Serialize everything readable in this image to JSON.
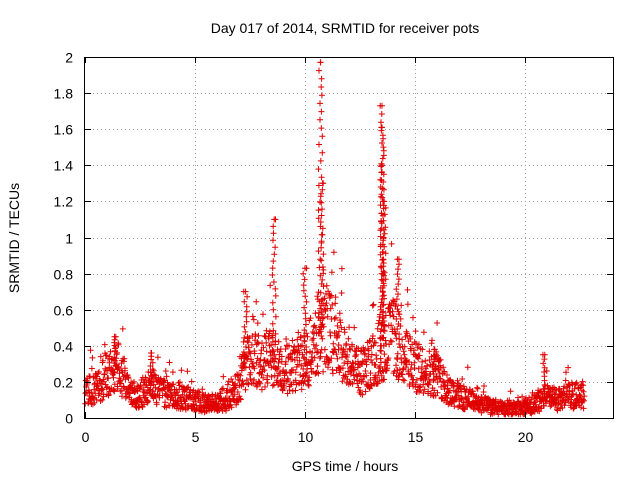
{
  "chart_data": {
    "type": "scatter",
    "title": "Day 017 of 2014, SRMTID for receiver pots",
    "xlabel": "GPS time / hours",
    "ylabel": "SRMTID / TECUs",
    "xlim": [
      0,
      24
    ],
    "ylim": [
      0,
      2
    ],
    "xticks": [
      0,
      5,
      10,
      15,
      20
    ],
    "yticks": [
      0,
      0.2,
      0.4,
      0.6,
      0.8,
      1,
      1.2,
      1.4,
      1.6,
      1.8,
      2
    ],
    "xtick_labels": [
      "0",
      "5",
      "10",
      "15",
      "20"
    ],
    "ytick_labels": [
      "0",
      "0.2",
      "0.4",
      "0.6",
      "0.8",
      "1",
      "1.2",
      "1.4",
      "1.6",
      "1.8",
      "2"
    ],
    "grid": true,
    "marker": "+",
    "color": "#e00000",
    "baseline_profile": {
      "description": "approximate background SRMTID level vs time (hours, TECU)",
      "x": [
        0,
        0.5,
        1.0,
        1.5,
        2.0,
        2.5,
        3.0,
        3.5,
        4.0,
        4.5,
        5.0,
        5.5,
        6.0,
        6.5,
        7.0,
        7.5,
        8.0,
        8.5,
        9.0,
        9.5,
        10.0,
        10.5,
        11.0,
        11.5,
        12.0,
        12.5,
        13.0,
        13.5,
        14.0,
        14.5,
        15.0,
        15.5,
        16.0,
        16.5,
        17.0,
        17.5,
        18.0,
        18.5,
        19.0,
        19.5,
        20.0,
        20.5,
        21.0,
        21.5,
        22.0,
        22.7
      ],
      "y": [
        0.14,
        0.16,
        0.24,
        0.28,
        0.14,
        0.12,
        0.18,
        0.14,
        0.12,
        0.11,
        0.1,
        0.08,
        0.08,
        0.1,
        0.18,
        0.35,
        0.3,
        0.35,
        0.25,
        0.3,
        0.3,
        0.45,
        0.5,
        0.45,
        0.3,
        0.25,
        0.3,
        0.4,
        0.45,
        0.35,
        0.28,
        0.26,
        0.24,
        0.16,
        0.12,
        0.1,
        0.08,
        0.06,
        0.05,
        0.05,
        0.06,
        0.08,
        0.12,
        0.1,
        0.12,
        0.12
      ]
    },
    "peaks": [
      {
        "x": 1.4,
        "y": 0.45
      },
      {
        "x": 3.0,
        "y": 0.36
      },
      {
        "x": 7.3,
        "y": 0.7
      },
      {
        "x": 8.6,
        "y": 1.1
      },
      {
        "x": 10.0,
        "y": 0.83
      },
      {
        "x": 10.7,
        "y": 1.97
      },
      {
        "x": 10.8,
        "y": 1.3
      },
      {
        "x": 13.5,
        "y": 1.73
      },
      {
        "x": 13.5,
        "y": 1.61
      },
      {
        "x": 13.5,
        "y": 1.4
      },
      {
        "x": 13.6,
        "y": 1.2
      },
      {
        "x": 14.2,
        "y": 0.88
      },
      {
        "x": 15.9,
        "y": 0.38
      },
      {
        "x": 20.9,
        "y": 0.35
      }
    ]
  }
}
